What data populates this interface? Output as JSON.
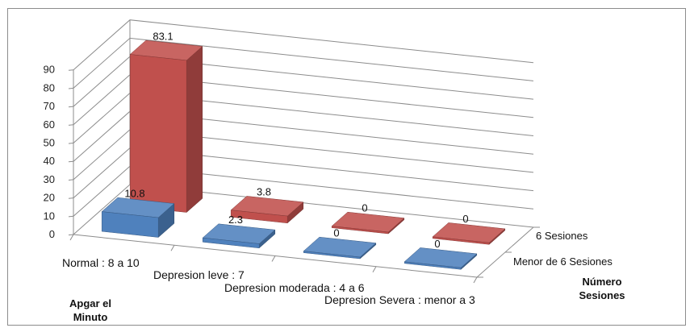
{
  "chart_data": {
    "type": "bar",
    "variant": "3d-column",
    "categories": [
      "Normal : 8 a 10",
      "Depresion leve : 7",
      "Depresion moderada : 4 a 6",
      "Depresion Severa : menor a 3"
    ],
    "series": [
      {
        "name": "Menor de 6 Sesiones",
        "color": "#4f81bd",
        "values": [
          10.8,
          2.3,
          0,
          0
        ]
      },
      {
        "name": "6 Sesiones",
        "color": "#c0504d",
        "values": [
          83.1,
          3.8,
          0,
          0
        ]
      }
    ],
    "data_labels": {
      "Menor de 6 Sesiones": [
        "10.8",
        "2.3",
        "0",
        "0"
      ],
      "6 Sesiones": [
        "83.1",
        "3.8",
        "0",
        "0"
      ]
    },
    "y_ticks": [
      "0",
      "10",
      "20",
      "30",
      "40",
      "50",
      "60",
      "70",
      "80",
      "90"
    ],
    "ylim": [
      0,
      90
    ],
    "x_axis_title": [
      "Apgar el",
      "Minuto"
    ],
    "depth_axis_title": [
      "Número",
      "Sesiones"
    ],
    "gridlines": true
  }
}
